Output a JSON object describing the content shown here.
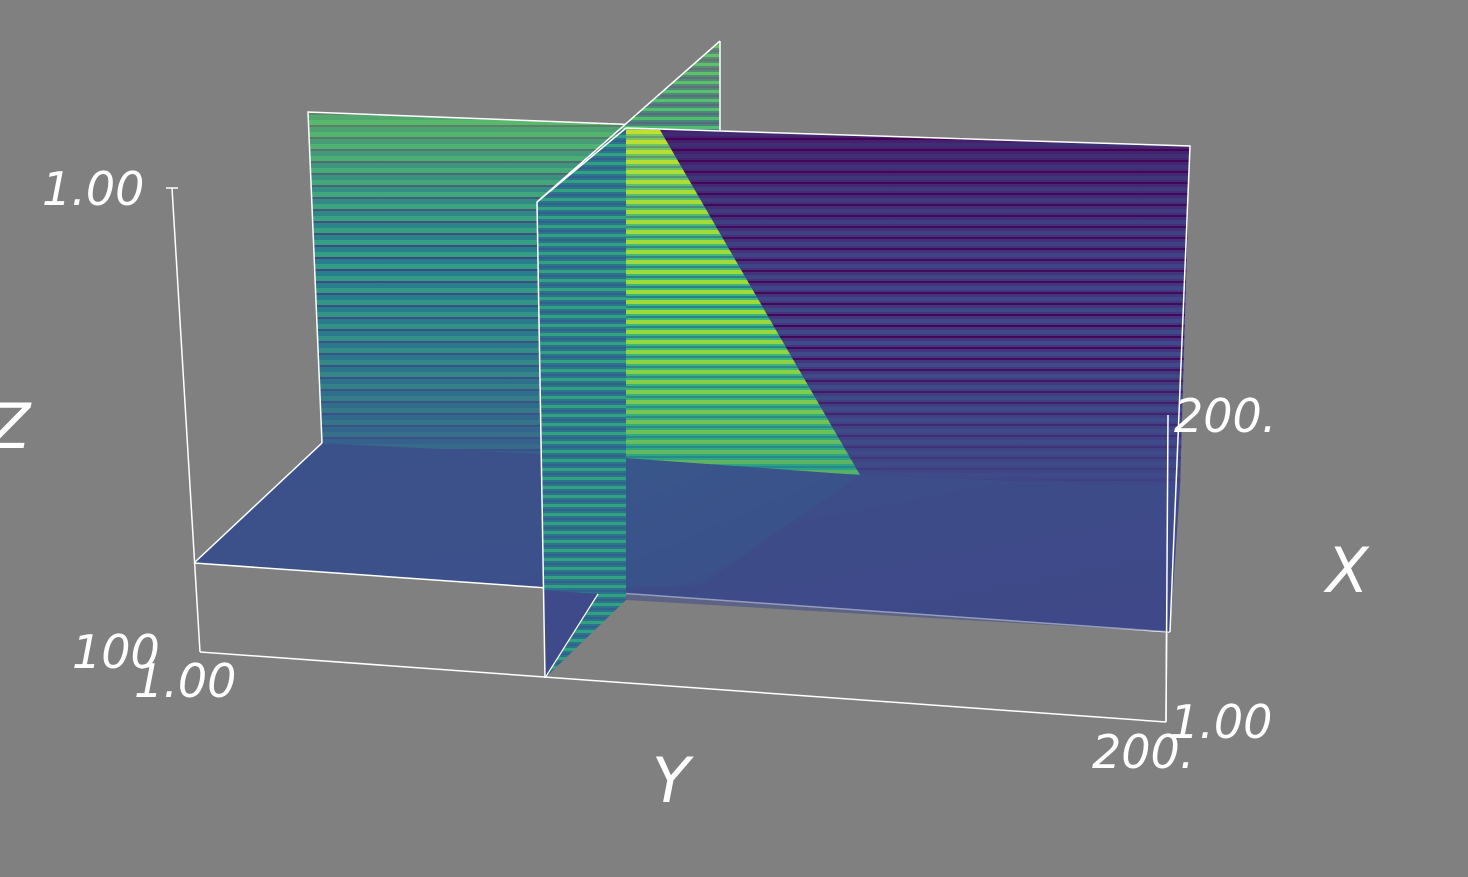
{
  "colors": {
    "background": "#808080",
    "axis_line": "#ffffff",
    "label": "#ffffff",
    "colormap": "viridis",
    "viridis_dark": "#440154",
    "viridis_mid": "#3b528b",
    "viridis_teal": "#21918c",
    "viridis_green": "#5ec962",
    "viridis_yellow": "#fde725"
  },
  "axes": {
    "x": {
      "name": "X",
      "tick_min": "1.00",
      "tick_max": "200."
    },
    "y": {
      "name": "Y",
      "tick_min": "1.00",
      "tick_max": "200."
    },
    "z": {
      "name": "Z",
      "tick_min": "100",
      "tick_max": "1.00"
    }
  },
  "scene": {
    "type": "3d-orthogonal-slices",
    "slice_count": 3
  }
}
